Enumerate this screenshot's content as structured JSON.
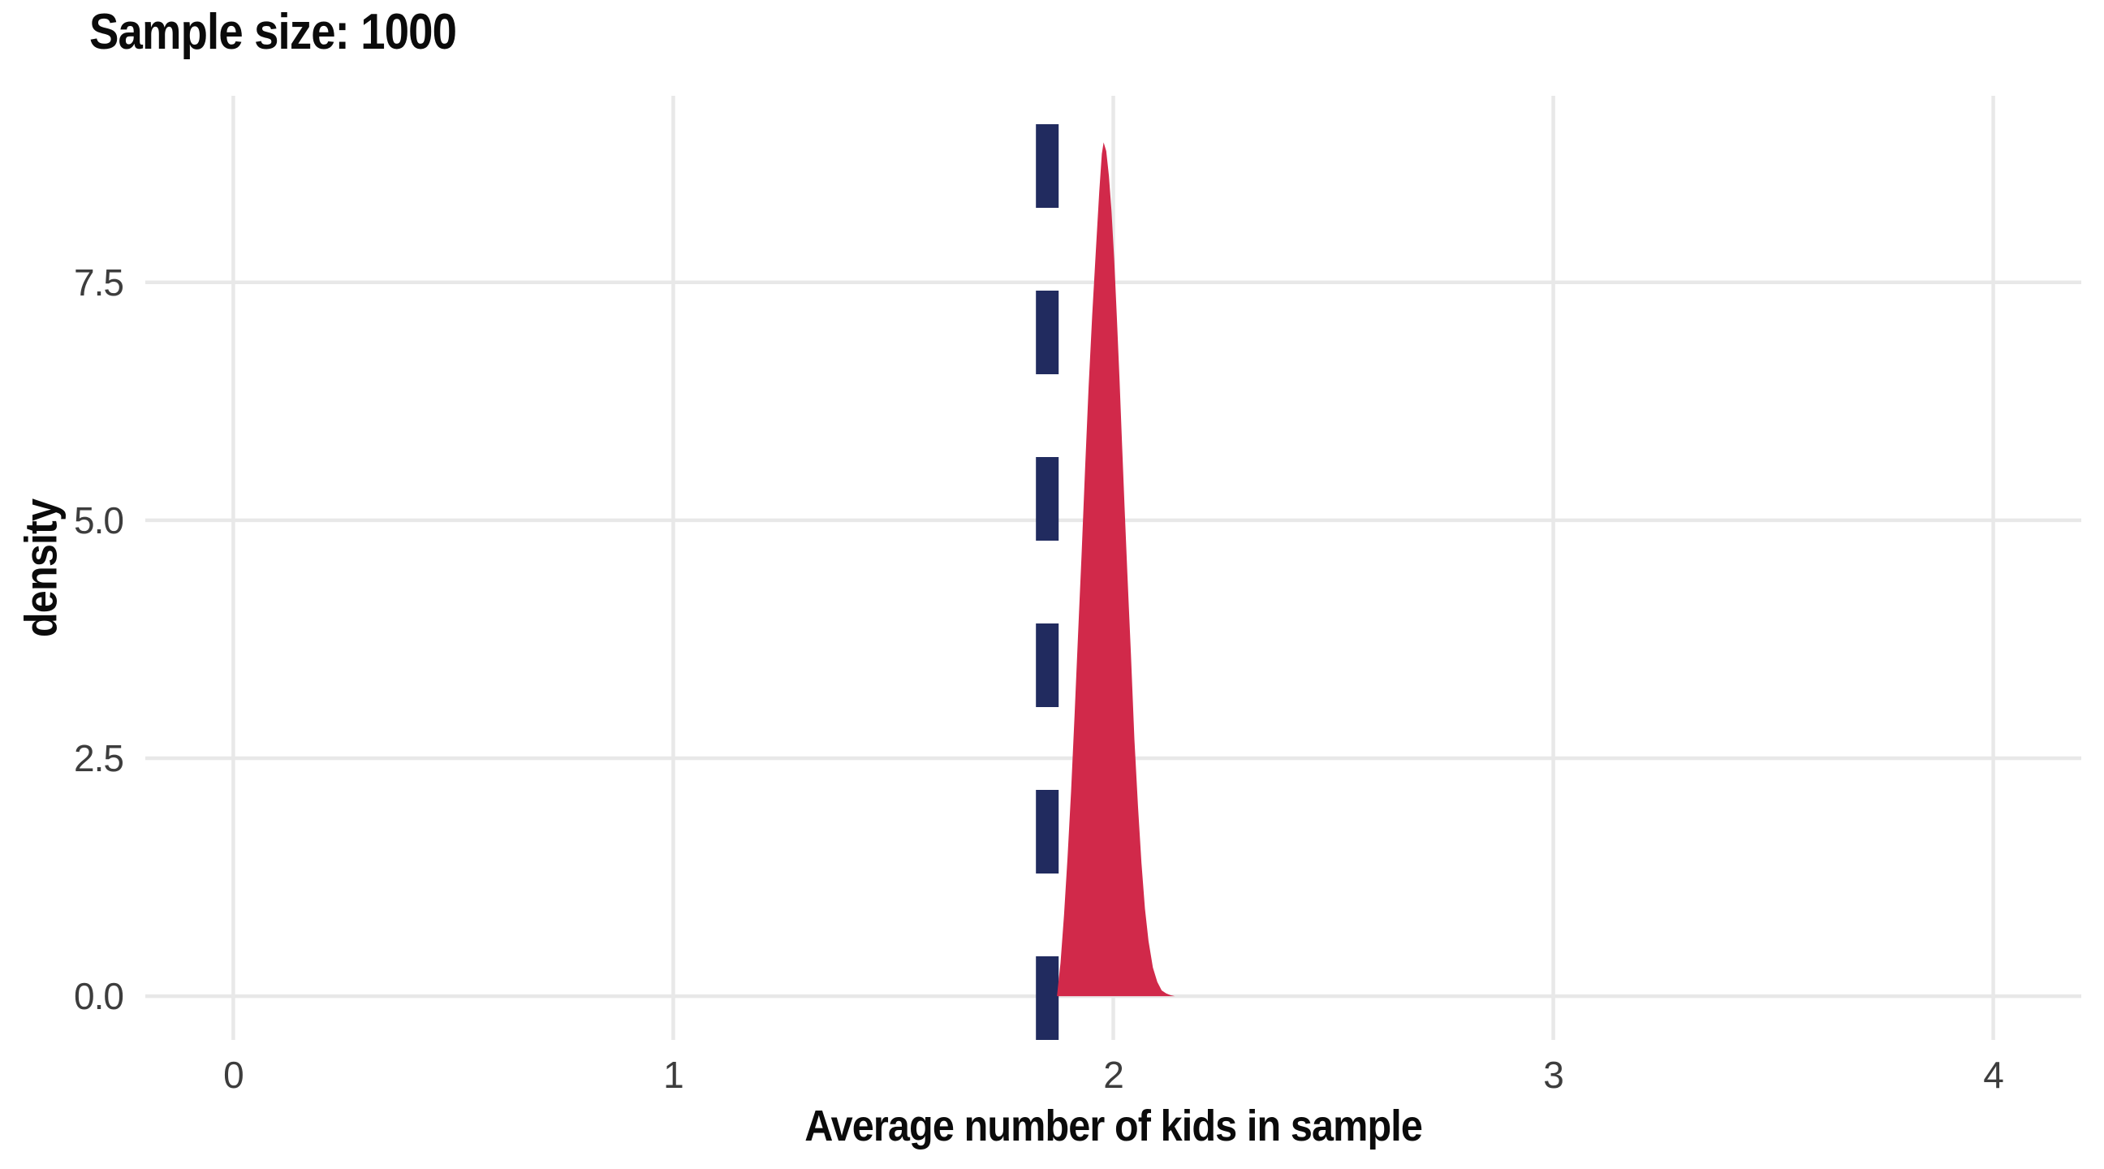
{
  "page": {
    "background": "#ffffff"
  },
  "chart_data": {
    "type": "area",
    "subtype": "density-curve",
    "title": "Sample size: 1000",
    "xlabel": "Average number of kids in sample",
    "ylabel": "density",
    "x_ticks": [
      {
        "value": 0,
        "label": "0"
      },
      {
        "value": 1,
        "label": "1"
      },
      {
        "value": 2,
        "label": "2"
      },
      {
        "value": 3,
        "label": "3"
      },
      {
        "value": 4,
        "label": "4"
      }
    ],
    "y_ticks": [
      {
        "value": 0.0,
        "label": "0.0"
      },
      {
        "value": 2.5,
        "label": "2.5"
      },
      {
        "value": 5.0,
        "label": "5.0"
      },
      {
        "value": 7.5,
        "label": "7.5"
      }
    ],
    "xlim": [
      -0.2,
      4.2
    ],
    "ylim": [
      -0.46,
      9.46
    ],
    "grid": "major-only",
    "legend": "none",
    "vline": {
      "x": 1.85,
      "style": "dashed",
      "color": "#212b5f",
      "width_data_units": 0.05
    },
    "series": [
      {
        "x": [
          1.872,
          1.88,
          1.888,
          1.896,
          1.904,
          1.912,
          1.92,
          1.928,
          1.936,
          1.944,
          1.952,
          1.96,
          1.968,
          1.974,
          1.978,
          1.984,
          1.99,
          1.996,
          2.002,
          2.008,
          2.014,
          2.02,
          2.026,
          2.032,
          2.04,
          2.048,
          2.056,
          2.064,
          2.072,
          2.08,
          2.09,
          2.1,
          2.11,
          2.12,
          2.13,
          2.14
        ],
        "density": [
          0,
          0.35,
          0.85,
          1.45,
          2.15,
          2.95,
          3.8,
          4.65,
          5.55,
          6.4,
          7.15,
          7.8,
          8.45,
          8.85,
          8.97,
          8.88,
          8.62,
          8.25,
          7.75,
          7.15,
          6.5,
          5.8,
          5.1,
          4.45,
          3.6,
          2.7,
          2.0,
          1.4,
          0.92,
          0.58,
          0.3,
          0.15,
          0.06,
          0.03,
          0.01,
          0
        ],
        "peak": {
          "x": 1.978,
          "density": 8.97
        },
        "fill": "#d1294a"
      }
    ],
    "colors": {
      "density_fill": "#d1294a",
      "vline": "#212b5f",
      "gridline": "#e8e8e8",
      "tick_label": "#3d3d3d",
      "text": "#0b0b0b",
      "background": "#ffffff"
    }
  }
}
